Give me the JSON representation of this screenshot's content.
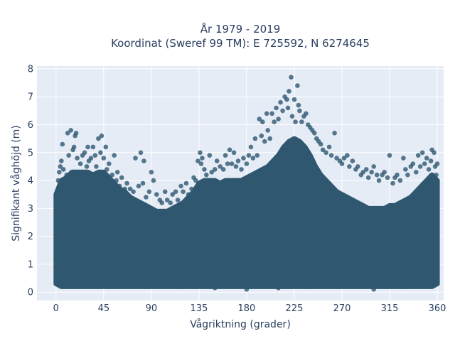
{
  "chart_data": {
    "type": "scatter",
    "title": "År 1979 - 2019",
    "subtitle": "Koordinat (Sweref 99 TM): E 725592, N 6274645",
    "xlabel": "Vågriktning (grader)",
    "ylabel": "Signifikant våghöjd (m)",
    "xlim": [
      -18,
      366
    ],
    "ylim": [
      -0.3,
      8.1
    ],
    "xticks": [
      0,
      45,
      90,
      135,
      180,
      225,
      270,
      315,
      360
    ],
    "yticks": [
      0,
      1,
      2,
      3,
      4,
      5,
      6,
      7,
      8
    ],
    "grid": true,
    "legend": "none",
    "marker_color": "#2f5770",
    "background": "#e5ecf6",
    "series": [
      {
        "points": [
          [
            2,
            4.0
          ],
          [
            3,
            4.3
          ],
          [
            4,
            4.5
          ],
          [
            5,
            4.7
          ],
          [
            6,
            5.3
          ],
          [
            7,
            4.4
          ],
          [
            10,
            4.2
          ],
          [
            11,
            5.7
          ],
          [
            12,
            4.9
          ],
          [
            14,
            5.8
          ],
          [
            16,
            5.1
          ],
          [
            17,
            5.2
          ],
          [
            18,
            5.6
          ],
          [
            19,
            5.7
          ],
          [
            20,
            4.8
          ],
          [
            23,
            4.6
          ],
          [
            25,
            4.9
          ],
          [
            27,
            5.0
          ],
          [
            29,
            4.5
          ],
          [
            30,
            5.2
          ],
          [
            31,
            4.7
          ],
          [
            33,
            4.8
          ],
          [
            35,
            5.2
          ],
          [
            37,
            4.9
          ],
          [
            38,
            4.5
          ],
          [
            40,
            5.5
          ],
          [
            42,
            5.0
          ],
          [
            43,
            5.6
          ],
          [
            45,
            4.8
          ],
          [
            47,
            5.2
          ],
          [
            48,
            4.4
          ],
          [
            50,
            4.6
          ],
          [
            53,
            4.2
          ],
          [
            55,
            4.9
          ],
          [
            57,
            4.0
          ],
          [
            58,
            4.3
          ],
          [
            60,
            3.8
          ],
          [
            62,
            4.1
          ],
          [
            65,
            3.7
          ],
          [
            67,
            3.9
          ],
          [
            70,
            3.7
          ],
          [
            73,
            3.6
          ],
          [
            75,
            4.8
          ],
          [
            78,
            3.8
          ],
          [
            80,
            5.0
          ],
          [
            82,
            3.9
          ],
          [
            83,
            4.7
          ],
          [
            85,
            3.4
          ],
          [
            88,
            3.6
          ],
          [
            90,
            4.3
          ],
          [
            92,
            4.0
          ],
          [
            95,
            3.5
          ],
          [
            98,
            3.3
          ],
          [
            100,
            3.2
          ],
          [
            103,
            3.6
          ],
          [
            105,
            3.3
          ],
          [
            108,
            3.2
          ],
          [
            110,
            3.5
          ],
          [
            113,
            3.6
          ],
          [
            115,
            3.3
          ],
          [
            118,
            3.8
          ],
          [
            120,
            3.6
          ],
          [
            123,
            3.9
          ],
          [
            125,
            3.5
          ],
          [
            128,
            3.7
          ],
          [
            130,
            4.1
          ],
          [
            132,
            4.0
          ],
          [
            134,
            4.7
          ],
          [
            136,
            5.0
          ],
          [
            137,
            4.6
          ],
          [
            138,
            4.8
          ],
          [
            140,
            4.4
          ],
          [
            142,
            4.2
          ],
          [
            145,
            4.9
          ],
          [
            147,
            4.3
          ],
          [
            150,
            4.4
          ],
          [
            152,
            4.7
          ],
          [
            155,
            4.5
          ],
          [
            158,
            4.4
          ],
          [
            160,
            4.9
          ],
          [
            162,
            4.6
          ],
          [
            164,
            5.1
          ],
          [
            166,
            4.6
          ],
          [
            168,
            5.0
          ],
          [
            170,
            4.5
          ],
          [
            172,
            4.7
          ],
          [
            175,
            4.4
          ],
          [
            177,
            4.8
          ],
          [
            180,
            4.6
          ],
          [
            182,
            4.9
          ],
          [
            184,
            5.2
          ],
          [
            186,
            4.8
          ],
          [
            188,
            5.5
          ],
          [
            190,
            4.9
          ],
          [
            192,
            6.2
          ],
          [
            194,
            5.6
          ],
          [
            195,
            6.1
          ],
          [
            197,
            5.4
          ],
          [
            199,
            6.4
          ],
          [
            200,
            5.8
          ],
          [
            202,
            5.5
          ],
          [
            204,
            6.4
          ],
          [
            206,
            6.1
          ],
          [
            208,
            6.6
          ],
          [
            210,
            6.2
          ],
          [
            212,
            6.8
          ],
          [
            214,
            6.5
          ],
          [
            216,
            7.0
          ],
          [
            218,
            6.9
          ],
          [
            219,
            6.6
          ],
          [
            220,
            7.2
          ],
          [
            222,
            7.7
          ],
          [
            223,
            6.3
          ],
          [
            225,
            6.9
          ],
          [
            226,
            6.1
          ],
          [
            228,
            7.4
          ],
          [
            229,
            6.7
          ],
          [
            230,
            6.5
          ],
          [
            232,
            6.1
          ],
          [
            234,
            6.3
          ],
          [
            236,
            6.4
          ],
          [
            238,
            6.0
          ],
          [
            240,
            5.9
          ],
          [
            242,
            5.8
          ],
          [
            244,
            5.7
          ],
          [
            246,
            5.5
          ],
          [
            248,
            5.4
          ],
          [
            250,
            5.3
          ],
          [
            252,
            5.1
          ],
          [
            255,
            5.0
          ],
          [
            258,
            5.2
          ],
          [
            260,
            4.9
          ],
          [
            263,
            5.7
          ],
          [
            265,
            4.8
          ],
          [
            268,
            4.7
          ],
          [
            270,
            4.6
          ],
          [
            272,
            4.8
          ],
          [
            275,
            4.9
          ],
          [
            277,
            4.5
          ],
          [
            280,
            4.7
          ],
          [
            283,
            4.4
          ],
          [
            285,
            4.5
          ],
          [
            288,
            4.2
          ],
          [
            290,
            4.3
          ],
          [
            293,
            4.4
          ],
          [
            295,
            4.1
          ],
          [
            298,
            4.3
          ],
          [
            300,
            4.5
          ],
          [
            303,
            4.2
          ],
          [
            305,
            4.0
          ],
          [
            308,
            4.2
          ],
          [
            310,
            4.3
          ],
          [
            313,
            4.1
          ],
          [
            315,
            4.9
          ],
          [
            318,
            3.9
          ],
          [
            320,
            4.1
          ],
          [
            322,
            4.2
          ],
          [
            325,
            4.0
          ],
          [
            328,
            4.8
          ],
          [
            330,
            4.4
          ],
          [
            332,
            4.2
          ],
          [
            335,
            4.5
          ],
          [
            337,
            4.6
          ],
          [
            340,
            4.3
          ],
          [
            342,
            4.9
          ],
          [
            344,
            4.5
          ],
          [
            346,
            5.0
          ],
          [
            348,
            4.6
          ],
          [
            350,
            4.8
          ],
          [
            352,
            4.4
          ],
          [
            354,
            4.7
          ],
          [
            355,
            5.1
          ],
          [
            357,
            5.0
          ],
          [
            358,
            4.5
          ],
          [
            359,
            4.2
          ],
          [
            360,
            4.6
          ],
          [
            60,
            0.2
          ],
          [
            90,
            0.2
          ],
          [
            120,
            0.2
          ],
          [
            180,
            0.1
          ],
          [
            240,
            0.2
          ],
          [
            300,
            0.1
          ],
          [
            330,
            0.2
          ],
          [
            15,
            0.2
          ],
          [
            210,
            0.15
          ],
          [
            150,
            0.15
          ]
        ]
      }
    ],
    "envelope": {
      "x": [
        0,
        5,
        10,
        15,
        20,
        25,
        30,
        35,
        40,
        45,
        50,
        55,
        60,
        65,
        70,
        75,
        80,
        85,
        90,
        95,
        100,
        105,
        110,
        115,
        120,
        125,
        130,
        135,
        140,
        145,
        150,
        155,
        160,
        165,
        170,
        175,
        180,
        185,
        190,
        195,
        200,
        205,
        210,
        215,
        220,
        225,
        230,
        235,
        240,
        245,
        250,
        255,
        260,
        265,
        270,
        275,
        280,
        285,
        290,
        295,
        300,
        305,
        310,
        315,
        320,
        325,
        330,
        335,
        340,
        345,
        350,
        355,
        360
      ],
      "upper": [
        3.5,
        4.0,
        4.1,
        4.3,
        4.3,
        4.3,
        4.3,
        4.2,
        4.3,
        4.3,
        4.1,
        3.9,
        3.7,
        3.6,
        3.4,
        3.3,
        3.2,
        3.1,
        3.0,
        2.9,
        2.9,
        2.9,
        3.0,
        3.1,
        3.2,
        3.4,
        3.6,
        3.9,
        4.0,
        4.0,
        4.0,
        3.9,
        4.0,
        4.0,
        4.0,
        4.0,
        4.1,
        4.2,
        4.3,
        4.4,
        4.5,
        4.7,
        4.9,
        5.2,
        5.4,
        5.5,
        5.4,
        5.2,
        4.9,
        4.5,
        4.2,
        4.0,
        3.8,
        3.6,
        3.5,
        3.4,
        3.3,
        3.2,
        3.1,
        3.0,
        3.0,
        3.0,
        3.0,
        3.1,
        3.1,
        3.2,
        3.3,
        3.4,
        3.6,
        3.8,
        4.0,
        4.2,
        4.0
      ],
      "lower": [
        0.3,
        0.2,
        0.2,
        0.2,
        0.2,
        0.2,
        0.2,
        0.2,
        0.2,
        0.2,
        0.2,
        0.2,
        0.2,
        0.2,
        0.2,
        0.2,
        0.2,
        0.2,
        0.2,
        0.2,
        0.2,
        0.2,
        0.2,
        0.2,
        0.2,
        0.2,
        0.2,
        0.2,
        0.2,
        0.2,
        0.2,
        0.2,
        0.2,
        0.2,
        0.2,
        0.2,
        0.2,
        0.2,
        0.2,
        0.2,
        0.2,
        0.2,
        0.2,
        0.2,
        0.2,
        0.2,
        0.2,
        0.2,
        0.2,
        0.2,
        0.2,
        0.2,
        0.2,
        0.2,
        0.2,
        0.2,
        0.2,
        0.2,
        0.2,
        0.2,
        0.2,
        0.2,
        0.2,
        0.2,
        0.2,
        0.2,
        0.2,
        0.2,
        0.2,
        0.2,
        0.2,
        0.2,
        0.3
      ]
    }
  }
}
